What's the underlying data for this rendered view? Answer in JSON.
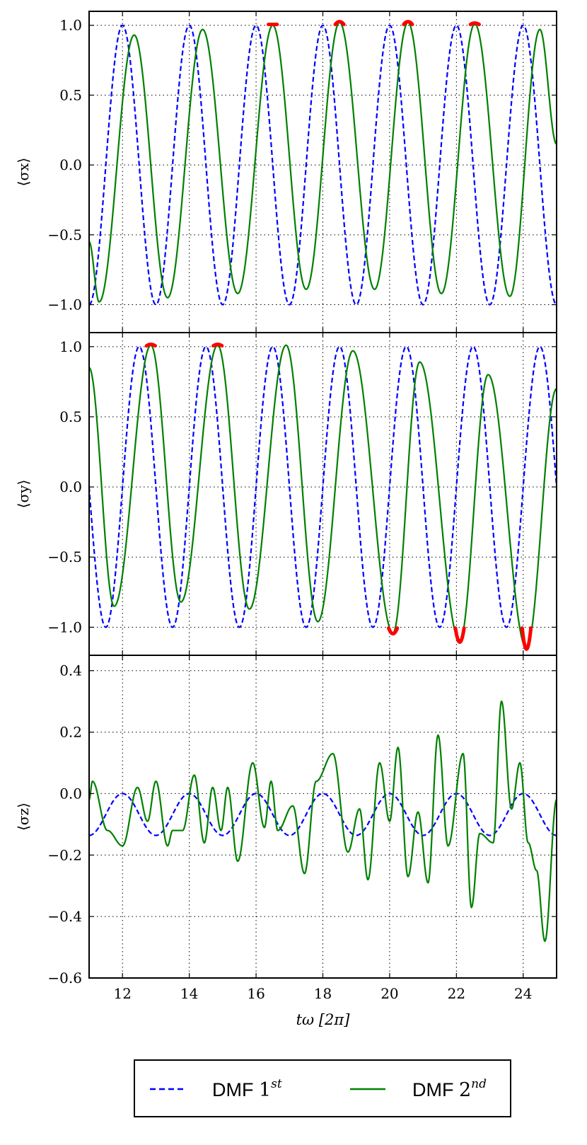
{
  "chart_data": [
    {
      "type": "line",
      "panel": "top",
      "ylabel": "⟨σx⟩",
      "ylim": [
        -1.2,
        1.1
      ],
      "xlim": [
        11,
        25
      ],
      "yticks": [
        "1.0",
        "0.5",
        "0.0",
        "−0.5",
        "−1.0"
      ],
      "ytick_values": [
        1.0,
        0.5,
        0.0,
        -0.5,
        -1.0
      ],
      "grid": true,
      "series": [
        {
          "name": "DMF 1st",
          "color": "#0000ff",
          "style": "dashed",
          "form": "cos",
          "amplitude": 1.0,
          "period": 2.0,
          "peak_at": 12.0,
          "offset": 0.0,
          "x_start": 11,
          "x_end": 25
        },
        {
          "name": "DMF 2nd",
          "color": "#008000",
          "style": "solid",
          "peaks_x": [
            12.35,
            14.4,
            16.5,
            18.5,
            20.55,
            22.55,
            24.5
          ],
          "peaks_y": [
            0.93,
            0.97,
            1.0,
            1.02,
            1.02,
            1.01,
            0.97
          ],
          "troughs_x": [
            11.3,
            13.35,
            15.45,
            17.5,
            19.55,
            21.55,
            23.6
          ],
          "troughs_y": [
            -0.98,
            -0.95,
            -0.92,
            -0.89,
            -0.89,
            -0.92,
            -0.94
          ],
          "start": [
            11.0,
            -0.55
          ],
          "end": [
            25.0,
            0.15
          ]
        }
      ],
      "highlights": [
        {
          "x": 16.5,
          "y": 1.0
        },
        {
          "x": 18.5,
          "y": 1.02
        },
        {
          "x": 20.55,
          "y": 1.02
        },
        {
          "x": 22.55,
          "y": 1.01
        }
      ]
    },
    {
      "type": "line",
      "panel": "middle",
      "ylabel": "⟨σy⟩",
      "ylim": [
        -1.2,
        1.1
      ],
      "xlim": [
        11,
        25
      ],
      "yticks": [
        "1.0",
        "0.5",
        "0.0",
        "−0.5",
        "−1.0"
      ],
      "ytick_values": [
        1.0,
        0.5,
        0.0,
        -0.5,
        -1.0
      ],
      "grid": true,
      "series": [
        {
          "name": "DMF 1st",
          "color": "#0000ff",
          "style": "dashed",
          "form": "cos",
          "amplitude": 1.0,
          "period": 2.0,
          "peak_at": 12.5,
          "offset": 0.0,
          "x_start": 11,
          "x_end": 25
        },
        {
          "name": "DMF 2nd",
          "color": "#008000",
          "style": "solid",
          "peaks_x": [
            12.85,
            14.85,
            16.9,
            18.9,
            20.9,
            22.95,
            25.0
          ],
          "peaks_y": [
            1.01,
            1.01,
            1.01,
            0.97,
            0.89,
            0.8,
            0.7
          ],
          "troughs_x": [
            11.75,
            13.75,
            15.8,
            17.85,
            20.1,
            22.1,
            24.1
          ],
          "troughs_y": [
            -0.85,
            -0.82,
            -0.87,
            -0.96,
            -1.04,
            -1.1,
            -1.15
          ],
          "start": [
            11.0,
            0.85
          ],
          "end": [
            25.0,
            0.7
          ]
        }
      ],
      "highlights": [
        {
          "x": 12.85,
          "y": 1.01
        },
        {
          "x": 14.85,
          "y": 1.01
        },
        {
          "x": 20.1,
          "y": -1.04
        },
        {
          "x": 22.1,
          "y": -1.1
        },
        {
          "x": 24.1,
          "y": -1.15
        }
      ]
    },
    {
      "type": "line",
      "panel": "bottom",
      "ylabel": "⟨σz⟩",
      "ylim": [
        -0.6,
        0.45
      ],
      "xlim": [
        11,
        25
      ],
      "xlabel": "tω [2π]",
      "xticks": [
        "12",
        "14",
        "16",
        "18",
        "20",
        "22",
        "24"
      ],
      "xtick_values": [
        12,
        14,
        16,
        18,
        20,
        22,
        24
      ],
      "yticks": [
        "0.4",
        "0.2",
        "0.0",
        "−0.2",
        "−0.4",
        "−0.6"
      ],
      "ytick_values": [
        0.4,
        0.2,
        0.0,
        -0.2,
        -0.4,
        -0.6
      ],
      "grid": true,
      "series": [
        {
          "name": "DMF 1st",
          "color": "#0000ff",
          "style": "dashed",
          "form": "cos",
          "amplitude": 0.068,
          "period": 2.0,
          "peak_at": 12.0,
          "offset": -0.068,
          "x_start": 11,
          "x_end": 25
        },
        {
          "name": "DMF 2nd",
          "color": "#008000",
          "style": "solid",
          "x": [
            11.0,
            11.1,
            11.55,
            12.0,
            12.45,
            12.75,
            13.0,
            13.35,
            13.5,
            13.8,
            14.15,
            14.45,
            14.7,
            14.95,
            15.15,
            15.45,
            15.9,
            16.25,
            16.45,
            16.65,
            17.1,
            17.45,
            17.8,
            18.3,
            18.75,
            19.1,
            19.35,
            19.7,
            20.0,
            20.25,
            20.55,
            20.85,
            21.15,
            21.45,
            21.75,
            22.2,
            22.45,
            22.7,
            23.1,
            23.35,
            23.65,
            23.9,
            24.15,
            24.4,
            24.65,
            25.0
          ],
          "y": [
            -0.02,
            0.04,
            -0.12,
            -0.17,
            0.02,
            -0.09,
            0.04,
            -0.17,
            -0.12,
            -0.12,
            0.06,
            -0.16,
            0.02,
            -0.12,
            0.02,
            -0.22,
            0.1,
            -0.11,
            0.04,
            -0.12,
            -0.04,
            -0.26,
            0.04,
            0.13,
            -0.19,
            -0.05,
            -0.28,
            0.1,
            -0.09,
            0.15,
            -0.27,
            -0.06,
            -0.29,
            0.19,
            -0.17,
            0.13,
            -0.37,
            -0.13,
            -0.16,
            0.3,
            -0.05,
            0.1,
            -0.16,
            -0.25,
            -0.48,
            -0.02
          ]
        }
      ]
    }
  ],
  "legend": {
    "position": "bottom-center",
    "entries": [
      {
        "name": "DMF ",
        "math": "1",
        "sup": "st",
        "color": "#0000ff",
        "style": "dashed"
      },
      {
        "name": "DMF ",
        "math": "2",
        "sup": "nd",
        "color": "#008000",
        "style": "solid"
      }
    ]
  },
  "highlight_color": "#ff0000"
}
